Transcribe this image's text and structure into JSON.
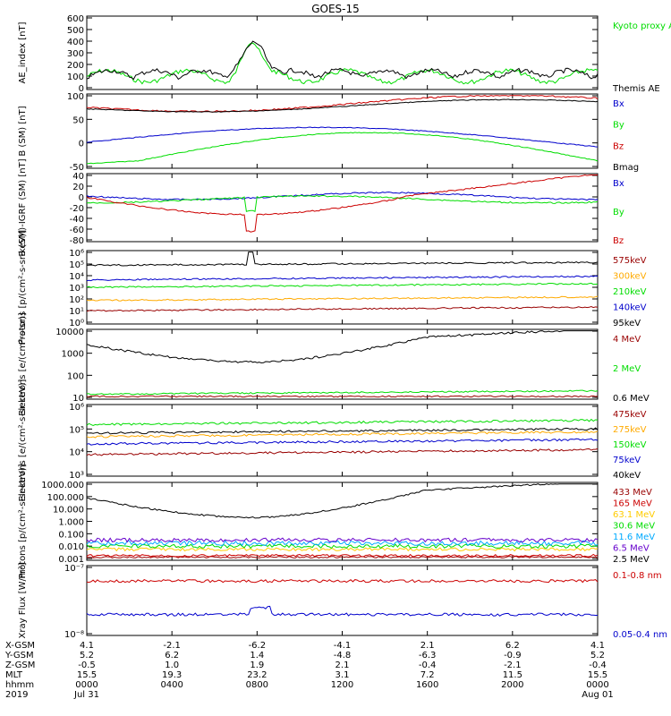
{
  "title": "GOES-15",
  "colors": {
    "black": "#000000",
    "red": "#cc0000",
    "green": "#00dd00",
    "blue": "#0000cc",
    "orange": "#ffaa00",
    "darkred": "#990000",
    "cyan": "#00aaff",
    "purple": "#6600cc",
    "yellow": "#ffcc00"
  },
  "chart_data": [
    {
      "type": "line",
      "ylabel": "AE_index [nT]",
      "yticks": [
        "600",
        "500",
        "400",
        "300",
        "200",
        "100",
        "0"
      ],
      "series": [
        {
          "name": "Kyoto proxy AE",
          "color": "#00dd00"
        },
        {
          "name": "Themis AE",
          "color": "#000000"
        }
      ]
    },
    {
      "type": "line",
      "ylabel": "B (SM) [nT]",
      "yticks": [
        "100",
        "50",
        "0",
        "-50"
      ],
      "series": [
        {
          "name": "Bx",
          "color": "#0000cc"
        },
        {
          "name": "By",
          "color": "#00dd00"
        },
        {
          "name": "Bz",
          "color": "#cc0000"
        },
        {
          "name": "Bmag",
          "color": "#000000"
        }
      ]
    },
    {
      "type": "line",
      "ylabel": "B (SM)-IGRF (SM) [nT]",
      "yticks": [
        "40",
        "20",
        "0",
        "-20",
        "-40",
        "-60",
        "-80"
      ],
      "series": [
        {
          "name": "Bx",
          "color": "#0000cc"
        },
        {
          "name": "By",
          "color": "#00dd00"
        },
        {
          "name": "Bz",
          "color": "#cc0000"
        }
      ]
    },
    {
      "type": "line",
      "ylabel": "Protons [p/(cm²-s-sr-keV)]",
      "yticks": [
        "10⁶",
        "10⁵",
        "10⁴",
        "10³",
        "10²",
        "10¹",
        "10⁰"
      ],
      "series": [
        {
          "name": "575keV",
          "color": "#990000"
        },
        {
          "name": "300keV",
          "color": "#ffaa00"
        },
        {
          "name": "210keV",
          "color": "#00dd00"
        },
        {
          "name": "140keV",
          "color": "#0000cc"
        },
        {
          "name": "95keV",
          "color": "#000000"
        }
      ]
    },
    {
      "type": "line",
      "ylabel": "Electrons [e/(cm²-s-sr)]",
      "yticks": [
        "10000",
        "1000",
        "100",
        "10"
      ],
      "series": [
        {
          "name": "4 MeV",
          "color": "#990000"
        },
        {
          "name": "2 MeV",
          "color": "#00dd00"
        },
        {
          "name": "0.6 MeV",
          "color": "#000000"
        }
      ]
    },
    {
      "type": "line",
      "ylabel": "Electrons [e/(cm²-s-sr-keV)]",
      "yticks": [
        "10⁶",
        "10⁵",
        "10⁴",
        "10³"
      ],
      "series": [
        {
          "name": "475keV",
          "color": "#990000"
        },
        {
          "name": "275keV",
          "color": "#ffaa00"
        },
        {
          "name": "150keV",
          "color": "#00dd00"
        },
        {
          "name": "75keV",
          "color": "#0000cc"
        },
        {
          "name": "40keV",
          "color": "#000000"
        }
      ]
    },
    {
      "type": "line",
      "ylabel": "Protons [p/(cm²-s-sr-keV)]",
      "yticks": [
        "1000.000",
        "100.000",
        "10.000",
        "1.000",
        "0.100",
        "0.010",
        "0.001"
      ],
      "series": [
        {
          "name": "433 MeV",
          "color": "#990000"
        },
        {
          "name": "165 MeV",
          "color": "#cc0000"
        },
        {
          "name": "63.1 MeV",
          "color": "#ffcc00"
        },
        {
          "name": "30.6 MeV",
          "color": "#00dd00"
        },
        {
          "name": "11.6 MeV",
          "color": "#00aaff"
        },
        {
          "name": "6.5 MeV",
          "color": "#6600cc"
        },
        {
          "name": "2.5 MeV",
          "color": "#000000"
        }
      ]
    },
    {
      "type": "line",
      "ylabel": "Xray Flux [W/m²]",
      "yticks": [
        "10⁻⁷",
        "10⁻⁸"
      ],
      "series": [
        {
          "name": "0.1-0.8 nm",
          "color": "#cc0000"
        },
        {
          "name": "0.05-0.4 nm",
          "color": "#0000cc"
        }
      ]
    }
  ],
  "axis": {
    "row_labels": [
      "X-GSM",
      "Y-GSM",
      "Z-GSM",
      "MLT",
      "hhmm",
      "2019"
    ],
    "columns": [
      [
        "4.1",
        "5.2",
        "-0.5",
        "15.5",
        "0000",
        "Jul 31"
      ],
      [
        "-2.1",
        "6.2",
        "1.0",
        "19.3",
        "0400",
        ""
      ],
      [
        "-6.2",
        "1.4",
        "1.9",
        "23.2",
        "0800",
        ""
      ],
      [
        "-4.1",
        "-4.8",
        "2.1",
        "3.1",
        "1200",
        ""
      ],
      [
        "2.1",
        "-6.3",
        "-0.4",
        "7.2",
        "1600",
        ""
      ],
      [
        "6.2",
        "-0.9",
        "-2.1",
        "11.5",
        "2000",
        ""
      ],
      [
        "4.1",
        "5.2",
        "-0.4",
        "15.5",
        "0000",
        "Aug 01"
      ]
    ]
  }
}
